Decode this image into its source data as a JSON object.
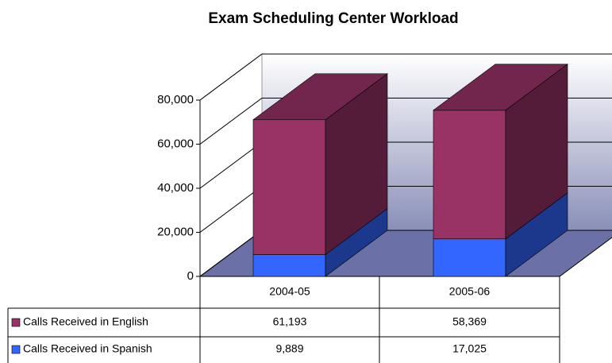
{
  "chart_data": {
    "type": "bar3d_stacked",
    "title": "Exam Scheduling Center Workload",
    "categories": [
      "2004-05",
      "2005-06"
    ],
    "series": [
      {
        "name": "Calls Received in Spanish",
        "color": "#3366ff",
        "values": [
          9889,
          17025
        ],
        "value_labels": [
          "9,889",
          "17,025"
        ]
      },
      {
        "name": "Calls Received in English",
        "color": "#993366",
        "values": [
          61193,
          58369
        ],
        "value_labels": [
          "61,193",
          "58,369"
        ]
      }
    ],
    "ylim": [
      0,
      80000
    ],
    "yticks": [
      {
        "value": 0,
        "label": "0"
      },
      {
        "value": 20000,
        "label": "20,000"
      },
      {
        "value": 40000,
        "label": "40,000"
      },
      {
        "value": 60000,
        "label": "60,000"
      },
      {
        "value": 80000,
        "label": "80,000"
      }
    ],
    "grid": true
  }
}
